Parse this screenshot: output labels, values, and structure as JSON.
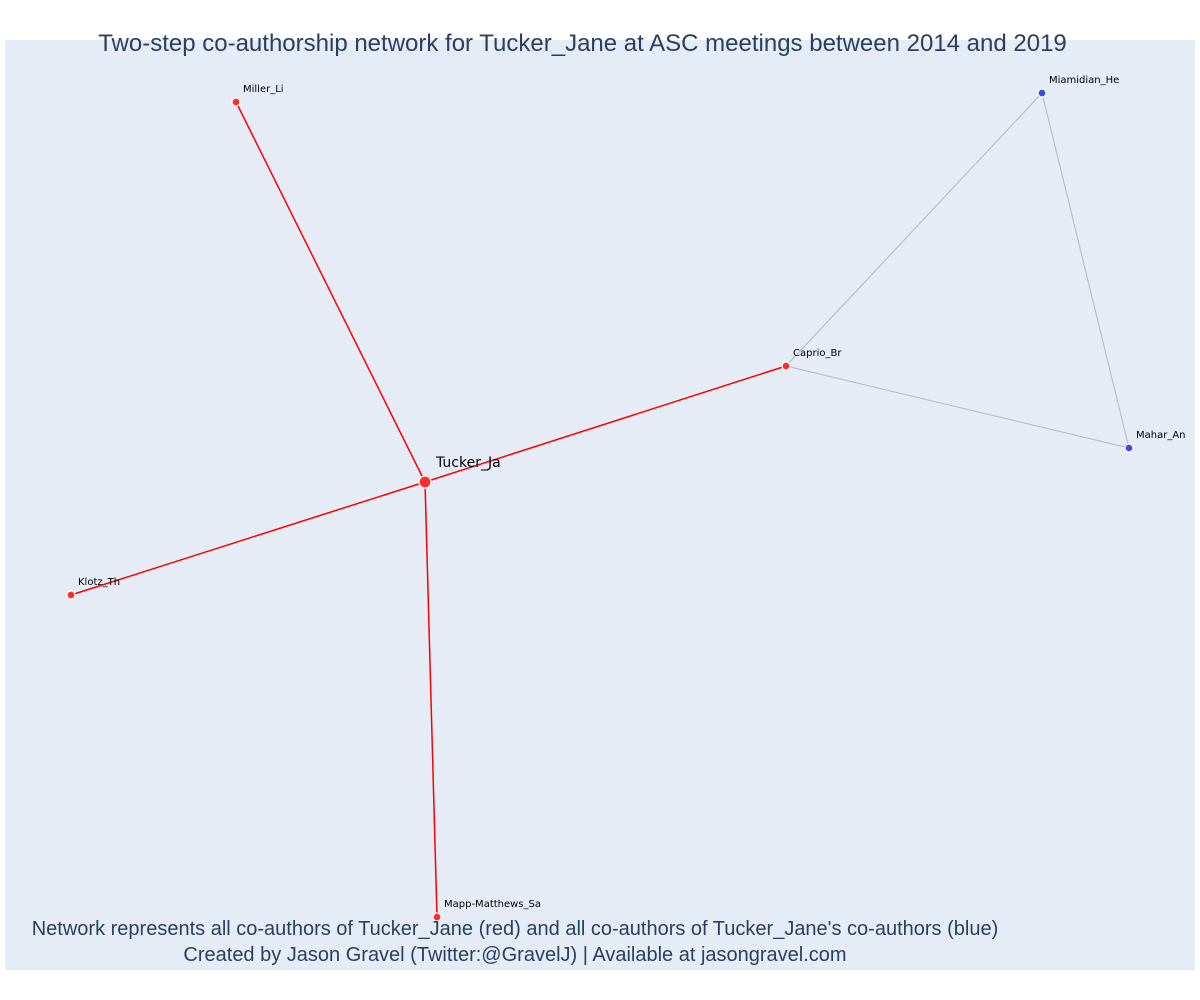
{
  "title": "Two-step co-authorship network for Tucker_Jane at ASC meetings between 2014 and 2019",
  "caption": [
    "Network represents all co-authors of Tucker_Jane (red) and all co-authors of Tucker_Jane's co-authors (blue)",
    "Created by Jason Gravel (Twitter:@GravelJ) | Available at jasongravel.com"
  ],
  "colors": {
    "background": "#e5ecf6",
    "first_degree": "#ff2d2d",
    "second_degree": "#3f4ae0",
    "first_degree_edge": "#ff0000",
    "second_degree_edge": "#b3b6c9"
  },
  "nodes": [
    {
      "id": "Tucker_Ja",
      "label": "Tucker_Ja",
      "group": "center"
    },
    {
      "id": "Miller_Li",
      "label": "Miller_Li",
      "group": "first_degree"
    },
    {
      "id": "Caprio_Br",
      "label": "Caprio_Br",
      "group": "first_degree"
    },
    {
      "id": "Klotz_Th",
      "label": "Klotz_Th",
      "group": "first_degree"
    },
    {
      "id": "Mapp-Matthews_Sa",
      "label": "Mapp-Matthews_Sa",
      "group": "first_degree"
    },
    {
      "id": "Miamidian_He",
      "label": "Miamidian_He",
      "group": "second_degree"
    },
    {
      "id": "Mahar_An",
      "label": "Mahar_An",
      "group": "second_degree"
    }
  ],
  "edges": [
    {
      "source": "Tucker_Ja",
      "target": "Miller_Li",
      "type": "first_degree"
    },
    {
      "source": "Tucker_Ja",
      "target": "Caprio_Br",
      "type": "first_degree"
    },
    {
      "source": "Tucker_Ja",
      "target": "Klotz_Th",
      "type": "first_degree"
    },
    {
      "source": "Tucker_Ja",
      "target": "Mapp-Matthews_Sa",
      "type": "first_degree"
    },
    {
      "source": "Caprio_Br",
      "target": "Miamidian_He",
      "type": "second_degree"
    },
    {
      "source": "Caprio_Br",
      "target": "Mahar_An",
      "type": "second_degree"
    },
    {
      "source": "Miamidian_He",
      "target": "Mahar_An",
      "type": "second_degree"
    }
  ]
}
